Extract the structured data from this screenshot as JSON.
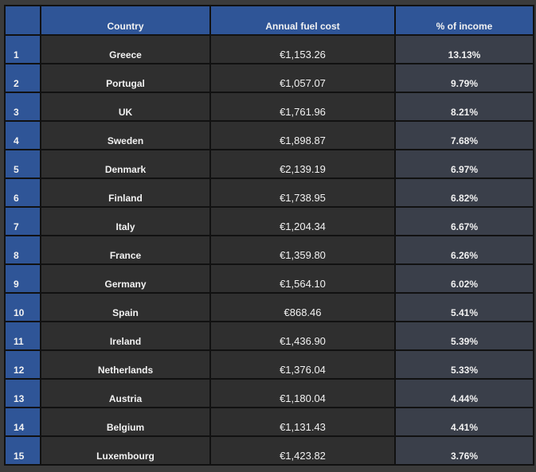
{
  "chart_data": {
    "type": "table",
    "columns": [
      "",
      "Country",
      "Annual fuel cost",
      "% of income"
    ],
    "rows": [
      {
        "rank": "1",
        "country": "Greece",
        "cost": "€1,153.26",
        "pct": "13.13%"
      },
      {
        "rank": "2",
        "country": "Portugal",
        "cost": "€1,057.07",
        "pct": "9.79%"
      },
      {
        "rank": "3",
        "country": "UK",
        "cost": "€1,761.96",
        "pct": "8.21%"
      },
      {
        "rank": "4",
        "country": "Sweden",
        "cost": "€1,898.87",
        "pct": "7.68%"
      },
      {
        "rank": "5",
        "country": "Denmark",
        "cost": "€2,139.19",
        "pct": "6.97%"
      },
      {
        "rank": "6",
        "country": "Finland",
        "cost": "€1,738.95",
        "pct": "6.82%"
      },
      {
        "rank": "7",
        "country": "Italy",
        "cost": "€1,204.34",
        "pct": "6.67%"
      },
      {
        "rank": "8",
        "country": "France",
        "cost": "€1,359.80",
        "pct": "6.26%"
      },
      {
        "rank": "9",
        "country": "Germany",
        "cost": "€1,564.10",
        "pct": "6.02%"
      },
      {
        "rank": "10",
        "country": "Spain",
        "cost": "€868.46",
        "pct": "5.41%"
      },
      {
        "rank": "11",
        "country": "Ireland",
        "cost": "€1,436.90",
        "pct": "5.39%"
      },
      {
        "rank": "12",
        "country": "Netherlands",
        "cost": "€1,376.04",
        "pct": "5.33%"
      },
      {
        "rank": "13",
        "country": "Austria",
        "cost": "€1,180.04",
        "pct": "4.44%"
      },
      {
        "rank": "14",
        "country": "Belgium",
        "cost": "€1,131.43",
        "pct": "4.41%"
      },
      {
        "rank": "15",
        "country": "Luxembourg",
        "cost": "€1,423.82",
        "pct": "3.76%"
      }
    ]
  },
  "colors": {
    "header": "#2f5597",
    "cell": "#2f2f2f",
    "pct_cell": "#3a3f4a"
  }
}
